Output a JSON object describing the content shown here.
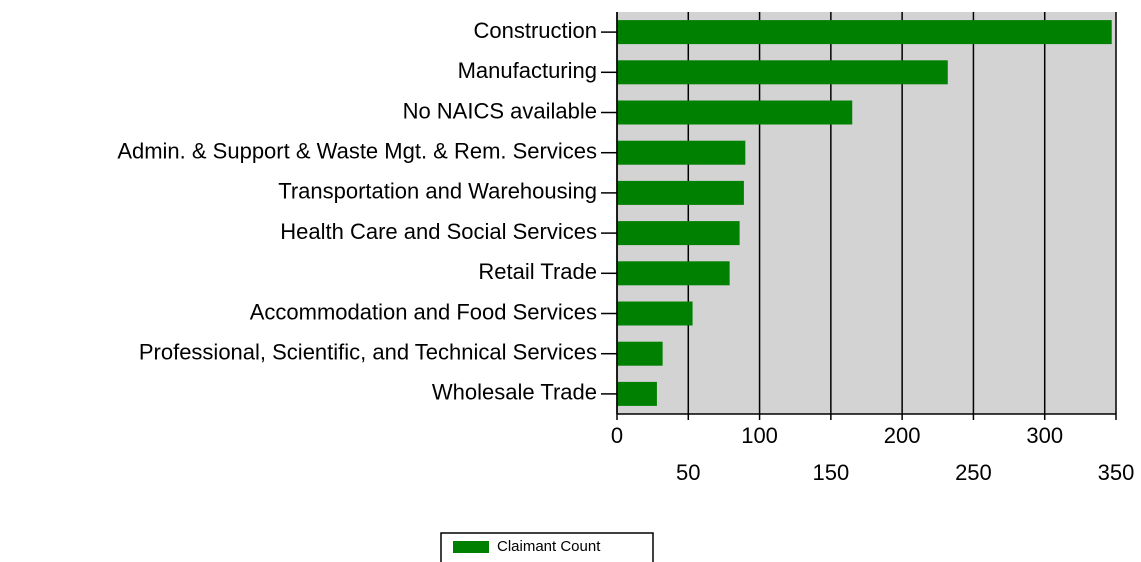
{
  "chart_data": {
    "type": "bar",
    "orientation": "horizontal",
    "categories": [
      "Construction",
      "Manufacturing",
      "No NAICS available",
      "Admin. & Support & Waste Mgt. & Rem. Services",
      "Transportation and Warehousing",
      "Health Care and Social Services",
      "Retail Trade",
      "Accommodation and Food Services",
      "Professional, Scientific, and Technical Services",
      "Wholesale Trade"
    ],
    "series": [
      {
        "name": "Claimant Count",
        "color": "#008000",
        "values": [
          347,
          232,
          165,
          90,
          89,
          86,
          79,
          53,
          32,
          28
        ]
      }
    ],
    "xlim": [
      0,
      350
    ],
    "xticks": [
      0,
      50,
      100,
      150,
      200,
      250,
      300,
      350
    ],
    "grid": true,
    "legend": "bottom"
  }
}
